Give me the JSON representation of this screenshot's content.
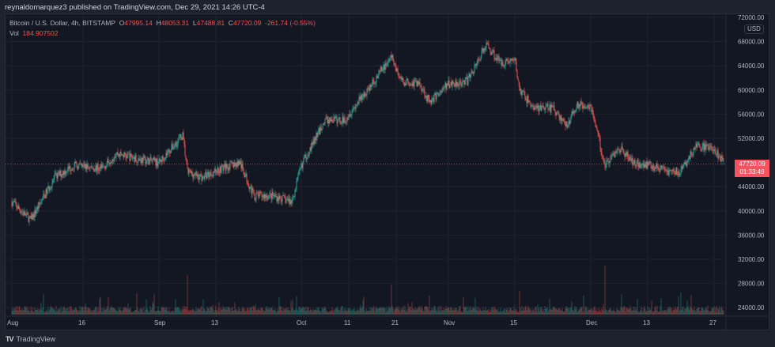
{
  "header": {
    "published": "reynaldomarquez3 published on TradingView.com, Dec 29, 2021 14:26 UTC-4"
  },
  "legend": {
    "symbol": "Bitcoin / U.S. Dollar, 4h, BITSTAMP",
    "open_label": "O",
    "open": "47995.14",
    "high_label": "H",
    "high": "48053.31",
    "low_label": "L",
    "low": "47488.81",
    "close_label": "C",
    "close": "47720.09",
    "change": "-261.74 (-0.55%)",
    "vol_label": "Vol",
    "vol": "184.907502"
  },
  "price_axis": {
    "currency": "USD",
    "last_price": "47720.09",
    "countdown": "01:33:49"
  },
  "footer": {
    "brand": "TradingView"
  },
  "colors": {
    "up": "#26a69a",
    "down": "#ef5350",
    "background": "#131722",
    "last_price": "#f7525f"
  },
  "chart_data": {
    "type": "candlestick",
    "interval": "4h",
    "ylim": [
      22000,
      72500
    ],
    "y_ticks": [
      "72000.00",
      "68000.00",
      "64000.00",
      "60000.00",
      "56000.00",
      "52000.00",
      "44000.00",
      "40000.00",
      "36000.00",
      "32000.00",
      "28000.00",
      "24000.00"
    ],
    "x_ticks": [
      {
        "label": "Aug",
        "date": "2021-08-01"
      },
      {
        "label": "16",
        "date": "2021-08-16"
      },
      {
        "label": "Sep",
        "date": "2021-09-01"
      },
      {
        "label": "13",
        "date": "2021-09-13"
      },
      {
        "label": "Oct",
        "date": "2021-10-01"
      },
      {
        "label": "11",
        "date": "2021-10-11"
      },
      {
        "label": "21",
        "date": "2021-10-21"
      },
      {
        "label": "Nov",
        "date": "2021-11-01"
      },
      {
        "label": "15",
        "date": "2021-11-15"
      },
      {
        "label": "Dec",
        "date": "2021-12-01"
      },
      {
        "label": "13",
        "date": "2021-12-13"
      },
      {
        "label": "27",
        "date": "2021-12-27"
      }
    ],
    "approx_close_path": [
      [
        "2021-08-01",
        41500
      ],
      [
        "2021-08-05",
        38500
      ],
      [
        "2021-08-10",
        45500
      ],
      [
        "2021-08-14",
        47500
      ],
      [
        "2021-08-20",
        47000
      ],
      [
        "2021-08-23",
        49500
      ],
      [
        "2021-08-28",
        48500
      ],
      [
        "2021-09-01",
        48000
      ],
      [
        "2021-09-06",
        52500
      ],
      [
        "2021-09-07",
        46500
      ],
      [
        "2021-09-10",
        45500
      ],
      [
        "2021-09-14",
        47000
      ],
      [
        "2021-09-18",
        48000
      ],
      [
        "2021-09-21",
        42500
      ],
      [
        "2021-09-25",
        42500
      ],
      [
        "2021-09-29",
        41500
      ],
      [
        "2021-10-01",
        47500
      ],
      [
        "2021-10-06",
        55000
      ],
      [
        "2021-10-10",
        55000
      ],
      [
        "2021-10-15",
        60000
      ],
      [
        "2021-10-20",
        65500
      ],
      [
        "2021-10-22",
        61500
      ],
      [
        "2021-10-26",
        61000
      ],
      [
        "2021-10-28",
        58000
      ],
      [
        "2021-11-01",
        61000
      ],
      [
        "2021-11-05",
        61500
      ],
      [
        "2021-11-09",
        67500
      ],
      [
        "2021-11-12",
        64500
      ],
      [
        "2021-11-15",
        65000
      ],
      [
        "2021-11-16",
        60000
      ],
      [
        "2021-11-19",
        57000
      ],
      [
        "2021-11-23",
        57000
      ],
      [
        "2021-11-26",
        54000
      ],
      [
        "2021-11-28",
        57500
      ],
      [
        "2021-12-01",
        57500
      ],
      [
        "2021-12-04",
        47500
      ],
      [
        "2021-12-07",
        50500
      ],
      [
        "2021-12-10",
        48000
      ],
      [
        "2021-12-14",
        47500
      ],
      [
        "2021-12-17",
        46500
      ],
      [
        "2021-12-20",
        46500
      ],
      [
        "2021-12-23",
        50500
      ],
      [
        "2021-12-27",
        50500
      ],
      [
        "2021-12-29",
        47720.09
      ]
    ],
    "last_price": 47720.09
  }
}
